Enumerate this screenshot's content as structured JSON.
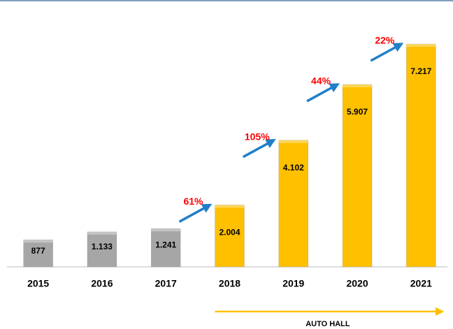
{
  "chart_data": {
    "type": "bar",
    "categories": [
      "2015",
      "2016",
      "2017",
      "2018",
      "2019",
      "2020",
      "2021"
    ],
    "values": [
      877,
      1133,
      1241,
      2004,
      4102,
      5907,
      7217
    ],
    "value_labels": [
      "877",
      "1.133",
      "1.241",
      "2.004",
      "4.102",
      "5.907",
      "7.217"
    ],
    "colors": [
      "#a6a6a6",
      "#a6a6a6",
      "#a6a6a6",
      "#ffc000",
      "#ffc000",
      "#ffc000",
      "#ffc000"
    ],
    "ylim": [
      0,
      7217
    ],
    "growth": {
      "categories": [
        "2018",
        "2019",
        "2020",
        "2021"
      ],
      "values": [
        61,
        105,
        44,
        22
      ],
      "value_labels": [
        "61%",
        "105%",
        "44%",
        "22%"
      ],
      "color": "#ff0000",
      "arrow_color": "#1f7fc8"
    },
    "bracket": {
      "label": "AUTO HALL",
      "from": "2018",
      "to": "2021",
      "color": "#ffc000"
    }
  }
}
